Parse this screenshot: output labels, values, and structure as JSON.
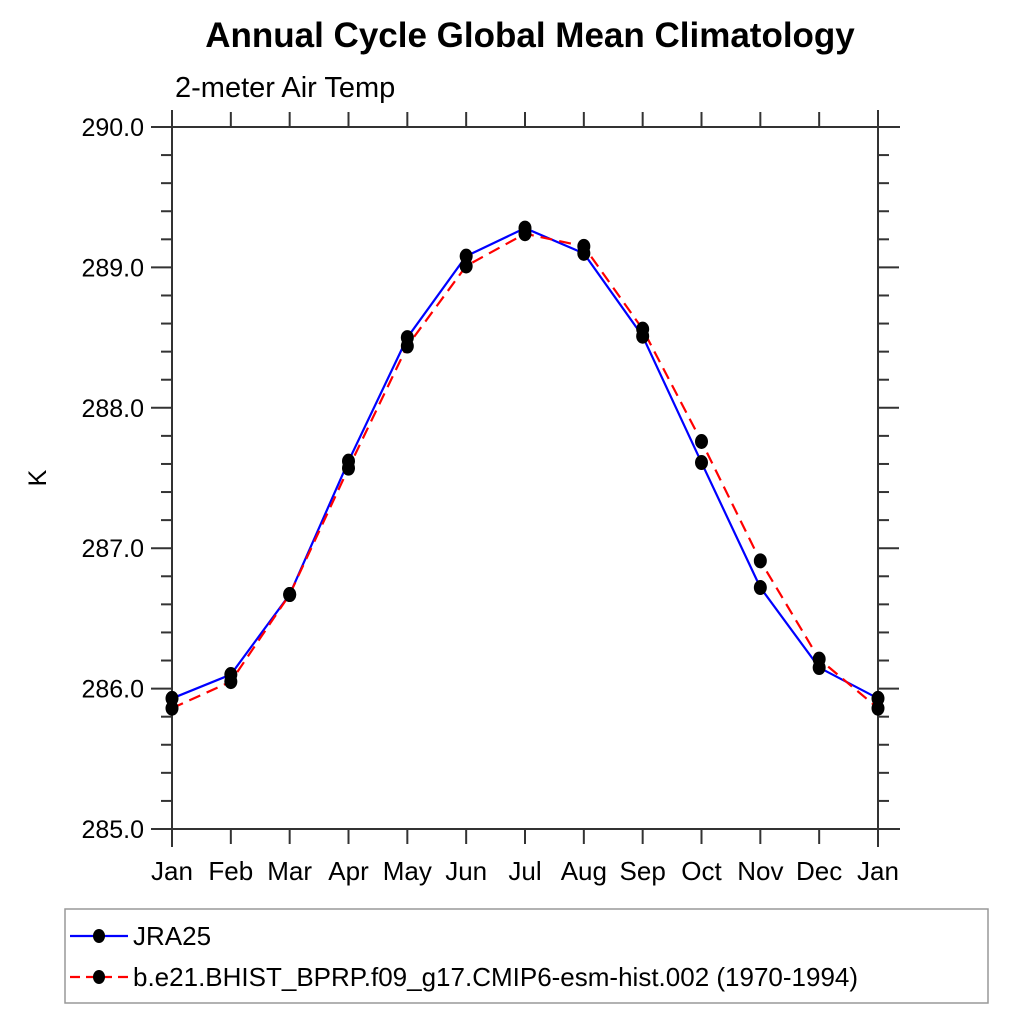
{
  "chart_data": {
    "type": "line",
    "title": "Annual Cycle Global Mean Climatology",
    "subtitle": "2-meter Air Temp",
    "ylabel": "K",
    "x_categories": [
      "Jan",
      "Feb",
      "Mar",
      "Apr",
      "May",
      "Jun",
      "Jul",
      "Aug",
      "Sep",
      "Oct",
      "Nov",
      "Dec",
      "Jan"
    ],
    "ylim": [
      285.0,
      290.0
    ],
    "y_major_ticks": [
      285.0,
      286.0,
      287.0,
      288.0,
      289.0,
      290.0
    ],
    "y_tick_labels": [
      "285.0",
      "286.0",
      "287.0",
      "288.0",
      "289.0",
      "290.0"
    ],
    "y_minor_step": 0.2,
    "grid": false,
    "legend_position": "bottom-left",
    "marker": "filled-black-dot",
    "marker_color": "#000000",
    "axis_color": "#333333",
    "legend_border_color": "#999999",
    "series": [
      {
        "name": "JRA25",
        "color": "#0000ff",
        "style": "solid",
        "values": [
          285.93,
          286.1,
          286.67,
          287.62,
          288.5,
          289.08,
          289.28,
          289.1,
          288.51,
          287.61,
          286.72,
          286.15,
          285.93
        ]
      },
      {
        "name": "b.e21.BHIST_BPRP.f09_g17.CMIP6-esm-hist.002 (1970-1994)",
        "color": "#ff0000",
        "style": "dashed",
        "values": [
          285.86,
          286.05,
          286.67,
          287.57,
          288.44,
          289.01,
          289.24,
          289.15,
          288.56,
          287.76,
          286.91,
          286.21,
          285.86
        ]
      }
    ]
  }
}
